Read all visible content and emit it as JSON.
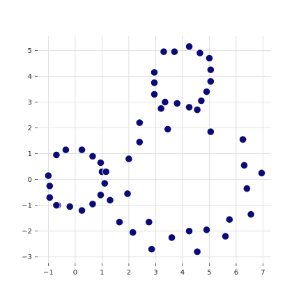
{
  "chart_data": {
    "type": "scatter",
    "title": "",
    "xlabel": "",
    "ylabel": "",
    "xlim": [
      -1.4,
      7.3
    ],
    "ylim": [
      -3.25,
      5.55
    ],
    "xticks": [
      -1,
      0,
      1,
      2,
      3,
      4,
      5,
      6,
      7
    ],
    "yticks": [
      -3,
      -2,
      -1,
      0,
      1,
      2,
      3,
      4,
      5
    ],
    "grid": true,
    "color": "#0a0a78",
    "series": [
      {
        "x": [
          -1.0,
          -0.95,
          -0.95,
          -0.7,
          -0.35,
          0.25,
          0.65,
          0.95,
          1.0,
          1.15,
          1.1,
          0.95,
          0.65,
          1.3,
          0.25,
          -0.2,
          -0.65,
          -0.7,
          2.0,
          2.4,
          2.4,
          1.95,
          1.65,
          2.15,
          2.85,
          2.75,
          3.6,
          4.25,
          4.55,
          4.9,
          5.6,
          5.75,
          6.55,
          6.4,
          6.3,
          6.25,
          6.95,
          5.05,
          3.45,
          3.2,
          2.95,
          2.95,
          2.95,
          3.3,
          3.7,
          4.25,
          4.65,
          5.0,
          5.05,
          5.05,
          4.9,
          4.7,
          4.55,
          4.25,
          3.8,
          3.35
        ],
        "y": [
          0.15,
          -0.25,
          -0.7,
          0.95,
          1.15,
          1.15,
          0.9,
          0.65,
          0.3,
          0.3,
          -0.15,
          -0.6,
          -0.95,
          -0.8,
          -1.2,
          -1.05,
          -1.0,
          -1.0,
          0.8,
          1.45,
          2.2,
          -0.55,
          -1.65,
          -2.05,
          -2.7,
          -1.65,
          -2.25,
          -2.0,
          -2.8,
          -1.95,
          -2.2,
          -1.55,
          -1.35,
          -0.35,
          0.55,
          1.55,
          0.25,
          1.85,
          1.95,
          2.75,
          3.3,
          3.75,
          4.15,
          4.95,
          4.95,
          5.15,
          4.9,
          4.7,
          4.25,
          3.8,
          3.4,
          3.05,
          2.7,
          2.8,
          2.95,
          3.0
        ]
      }
    ]
  }
}
